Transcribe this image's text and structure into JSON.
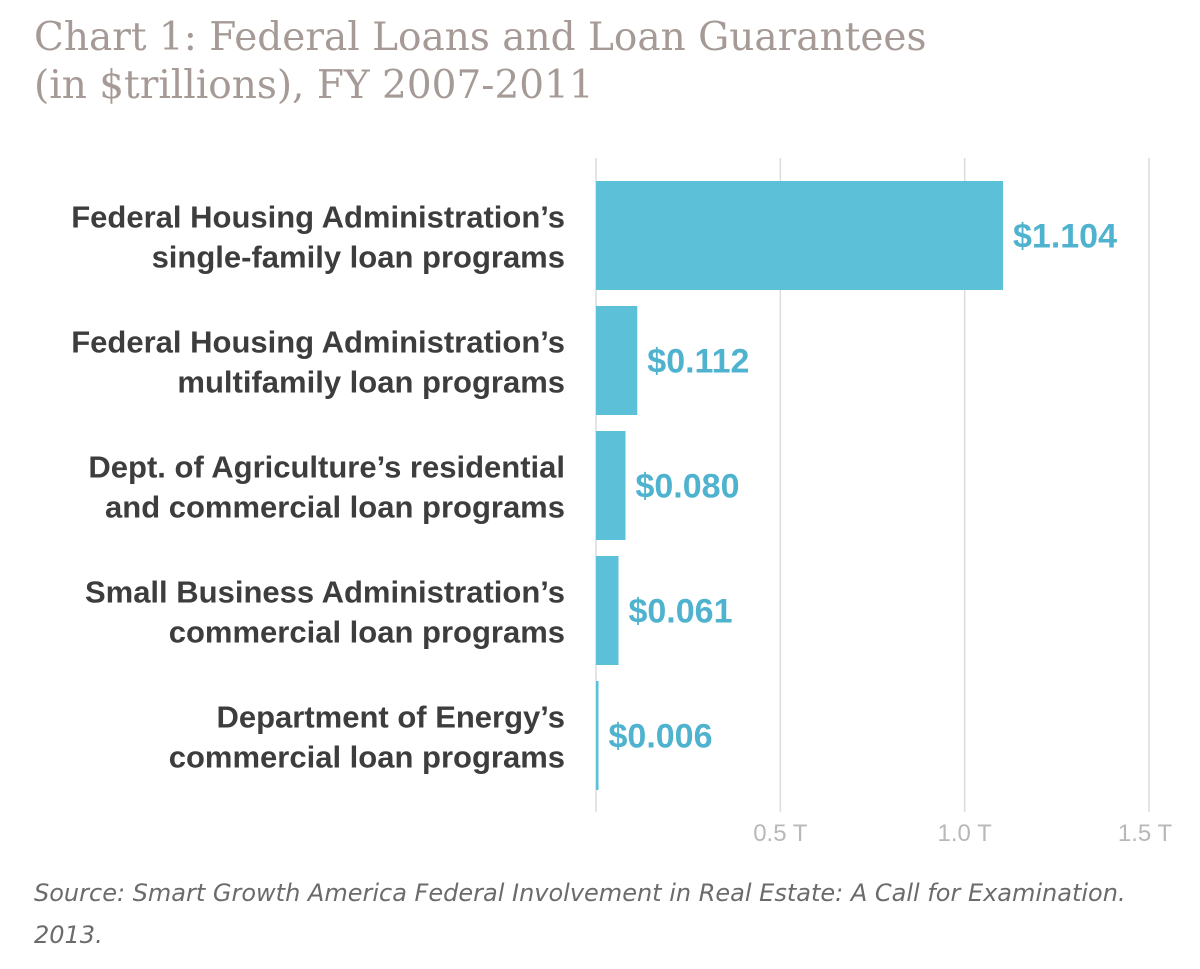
{
  "chart_data": {
    "type": "bar",
    "orientation": "horizontal",
    "title_line1": "Chart 1: Federal Loans and Loan Guarantees",
    "title_line2": "(in $trillions), FY 2007-2011",
    "categories": [
      [
        "Federal Housing Administration’s",
        "single-family loan programs"
      ],
      [
        "Federal Housing Administration’s",
        "multifamily loan programs"
      ],
      [
        "Dept. of Agriculture’s residential",
        "and commercial loan programs"
      ],
      [
        "Small Business Administration’s",
        "commercial loan programs"
      ],
      [
        "Department of Energy’s",
        "commercial loan programs"
      ]
    ],
    "values": [
      1.104,
      0.112,
      0.08,
      0.061,
      0.006
    ],
    "value_labels": [
      "$1.104",
      "$0.112",
      "$0.080",
      "$0.061",
      "$0.006"
    ],
    "xlim": [
      0,
      1.5
    ],
    "x_ticks": [
      0.5,
      1.0,
      1.5
    ],
    "x_tick_labels": [
      "0.5 T",
      "1.0 T",
      "1.5 T"
    ],
    "grid": true,
    "bar_color": "#5bc0d8",
    "value_label_color": "#4fb3cf",
    "gridline_color": "#dcdcdc"
  },
  "source_text": "Source: Smart Growth America Federal Involvement in Real Estate: A Call for Examination. 2013."
}
